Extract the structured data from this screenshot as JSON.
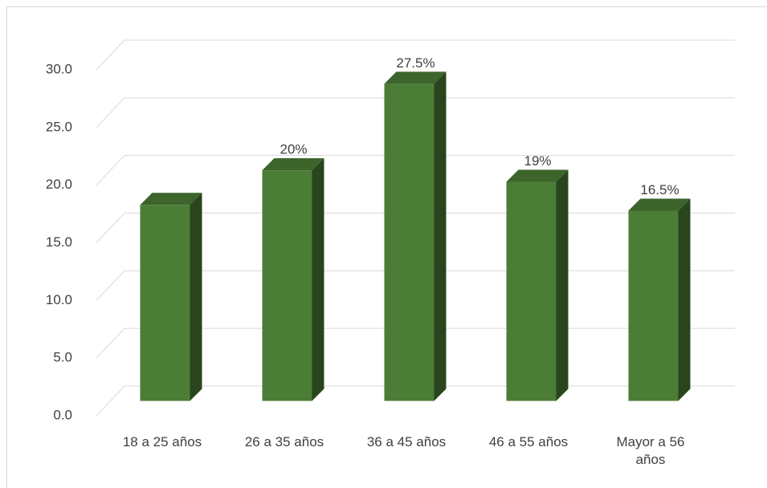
{
  "chart_data": {
    "type": "bar3d",
    "categories": [
      "18 a 25 años",
      "26 a 35 años",
      "36 a 45 años",
      "46 a 55 años",
      "Mayor a 56 años"
    ],
    "values": [
      17,
      20,
      27.5,
      19,
      16.5
    ],
    "value_labels": [
      null,
      "20%",
      "27.5%",
      "19%",
      "16.5%"
    ],
    "color": "#4b7d36",
    "ylim": [
      0,
      30
    ],
    "yticks": [
      {
        "value": 0,
        "label": "0.0"
      },
      {
        "value": 5,
        "label": "5.0"
      },
      {
        "value": 10,
        "label": "10.0"
      },
      {
        "value": 15,
        "label": "15.0"
      },
      {
        "value": 20,
        "label": "20.0"
      },
      {
        "value": 25,
        "label": "25.0"
      },
      {
        "value": 30,
        "label": "30.0"
      }
    ],
    "grid": true
  }
}
